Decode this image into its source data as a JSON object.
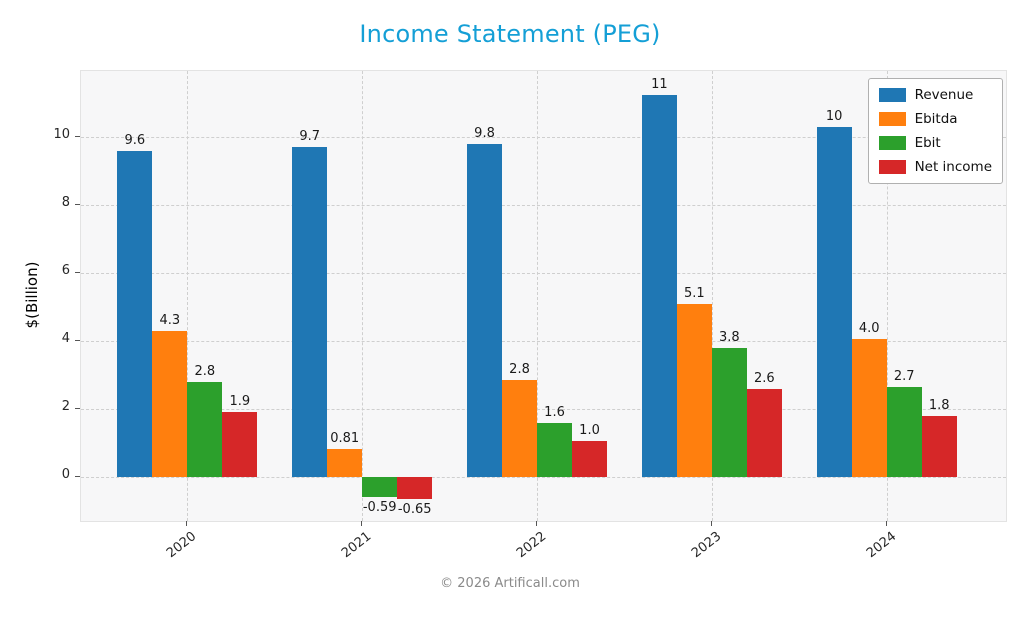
{
  "footer": "© 2026 Artificall.com",
  "chart_data": {
    "type": "bar",
    "title": "Income Statement (PEG)",
    "title_color": "#149fd6",
    "ylabel": "$(Billion)",
    "xlabel": "",
    "categories": [
      "2020",
      "2021",
      "2022",
      "2023",
      "2024"
    ],
    "series": [
      {
        "name": "Revenue",
        "color": "#1f77b4",
        "values": [
          9.6,
          9.7,
          9.8,
          11.25,
          10.3
        ],
        "labels": [
          "9.6",
          "9.7",
          "9.8",
          "11",
          "10"
        ]
      },
      {
        "name": "Ebitda",
        "color": "#ff7f0e",
        "values": [
          4.3,
          0.81,
          2.85,
          5.1,
          4.05
        ],
        "labels": [
          "4.3",
          "0.81",
          "2.8",
          "5.1",
          "4.0"
        ]
      },
      {
        "name": "Ebit",
        "color": "#2ca02c",
        "values": [
          2.8,
          -0.59,
          1.6,
          3.8,
          2.65
        ],
        "labels": [
          "2.8",
          "-0.59",
          "1.6",
          "3.8",
          "2.7"
        ]
      },
      {
        "name": "Net income",
        "color": "#d62728",
        "values": [
          1.9,
          -0.65,
          1.05,
          2.6,
          1.8
        ],
        "labels": [
          "1.9",
          "-0.65",
          "1.0",
          "2.6",
          "1.8"
        ]
      }
    ],
    "yticks": [
      0,
      2,
      4,
      6,
      8,
      10
    ],
    "ylim": [
      -1.3,
      11.95
    ],
    "grid": true,
    "grid_style": "dashed",
    "legend_position": "upper right"
  }
}
